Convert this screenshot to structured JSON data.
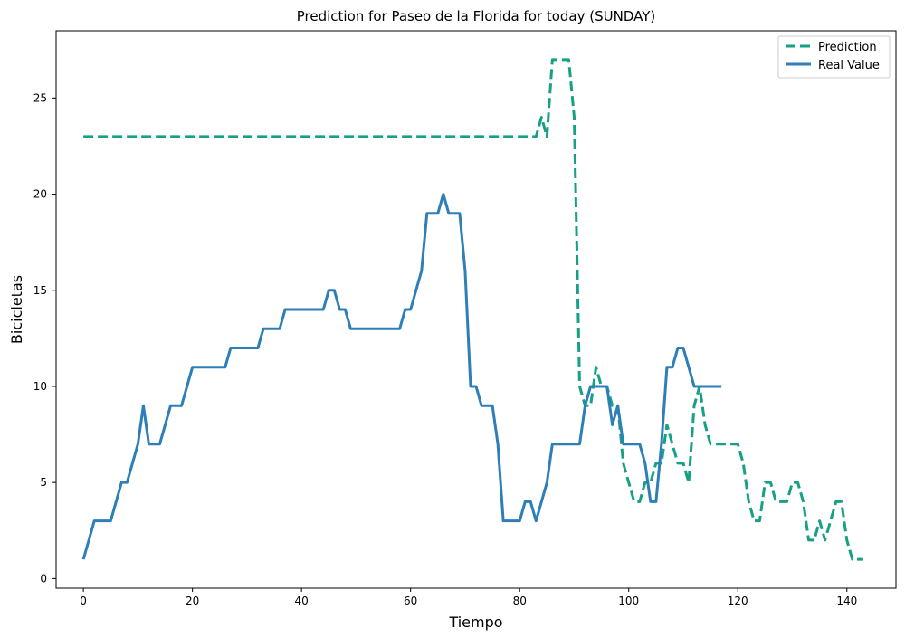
{
  "chart_data": {
    "type": "line",
    "title": "Prediction for Paseo de la Florida for today (SUNDAY)",
    "xlabel": "Tiempo",
    "ylabel": "Bicicletas",
    "xlim": [
      -5,
      149
    ],
    "ylim": [
      -0.5,
      28.5
    ],
    "xticks": [
      0,
      20,
      40,
      60,
      80,
      100,
      120,
      140
    ],
    "yticks": [
      0,
      5,
      10,
      15,
      20,
      25
    ],
    "grid": false,
    "legend_position": "top-right",
    "series": [
      {
        "name": "Prediction",
        "color": "#16a085",
        "style": "dashed",
        "points": [
          [
            0,
            23
          ],
          [
            83,
            23
          ],
          [
            84,
            24
          ],
          [
            85,
            23
          ],
          [
            86,
            27
          ],
          [
            89,
            27
          ],
          [
            90,
            24
          ],
          [
            91,
            10
          ],
          [
            92,
            9
          ],
          [
            93,
            9
          ],
          [
            94,
            11
          ],
          [
            95,
            10
          ],
          [
            96,
            10
          ],
          [
            97,
            9
          ],
          [
            98,
            9
          ],
          [
            99,
            6
          ],
          [
            100,
            5
          ],
          [
            101,
            4
          ],
          [
            102,
            4
          ],
          [
            103,
            5
          ],
          [
            104,
            5
          ],
          [
            105,
            6
          ],
          [
            106,
            6
          ],
          [
            107,
            8
          ],
          [
            108,
            7
          ],
          [
            109,
            6
          ],
          [
            110,
            6
          ],
          [
            111,
            5
          ],
          [
            112,
            9
          ],
          [
            113,
            10
          ],
          [
            114,
            8
          ],
          [
            115,
            7
          ],
          [
            120,
            7
          ],
          [
            121,
            6
          ],
          [
            122,
            4
          ],
          [
            123,
            3
          ],
          [
            124,
            3
          ],
          [
            125,
            5
          ],
          [
            126,
            5
          ],
          [
            127,
            4
          ],
          [
            129,
            4
          ],
          [
            130,
            5
          ],
          [
            131,
            5
          ],
          [
            132,
            4
          ],
          [
            133,
            2
          ],
          [
            134,
            2
          ],
          [
            135,
            3
          ],
          [
            136,
            2
          ],
          [
            137,
            3
          ],
          [
            138,
            4
          ],
          [
            139,
            4
          ],
          [
            140,
            2
          ],
          [
            141,
            1
          ],
          [
            143,
            1
          ]
        ]
      },
      {
        "name": "Real Value",
        "color": "#2e7fb8",
        "style": "solid",
        "points": [
          [
            0,
            1
          ],
          [
            2,
            3
          ],
          [
            5,
            3
          ],
          [
            7,
            5
          ],
          [
            8,
            5
          ],
          [
            10,
            7
          ],
          [
            11,
            9
          ],
          [
            12,
            7
          ],
          [
            14,
            7
          ],
          [
            16,
            9
          ],
          [
            18,
            9
          ],
          [
            20,
            11
          ],
          [
            26,
            11
          ],
          [
            27,
            12
          ],
          [
            32,
            12
          ],
          [
            33,
            13
          ],
          [
            36,
            13
          ],
          [
            37,
            14
          ],
          [
            44,
            14
          ],
          [
            45,
            15
          ],
          [
            46,
            15
          ],
          [
            47,
            14
          ],
          [
            48,
            14
          ],
          [
            49,
            13
          ],
          [
            58,
            13
          ],
          [
            59,
            14
          ],
          [
            60,
            14
          ],
          [
            62,
            16
          ],
          [
            63,
            19
          ],
          [
            65,
            19
          ],
          [
            66,
            20
          ],
          [
            67,
            19
          ],
          [
            69,
            19
          ],
          [
            70,
            16
          ],
          [
            71,
            10
          ],
          [
            72,
            10
          ],
          [
            73,
            9
          ],
          [
            75,
            9
          ],
          [
            76,
            7
          ],
          [
            77,
            3
          ],
          [
            80,
            3
          ],
          [
            81,
            4
          ],
          [
            82,
            4
          ],
          [
            83,
            3
          ],
          [
            85,
            5
          ],
          [
            86,
            7
          ],
          [
            91,
            7
          ],
          [
            92,
            9
          ],
          [
            93,
            10
          ],
          [
            96,
            10
          ],
          [
            97,
            8
          ],
          [
            98,
            9
          ],
          [
            99,
            7
          ],
          [
            102,
            7
          ],
          [
            103,
            6
          ],
          [
            104,
            4
          ],
          [
            105,
            4
          ],
          [
            106,
            7
          ],
          [
            107,
            11
          ],
          [
            108,
            11
          ],
          [
            109,
            12
          ],
          [
            110,
            12
          ],
          [
            112,
            10
          ],
          [
            117,
            10
          ]
        ]
      }
    ]
  }
}
